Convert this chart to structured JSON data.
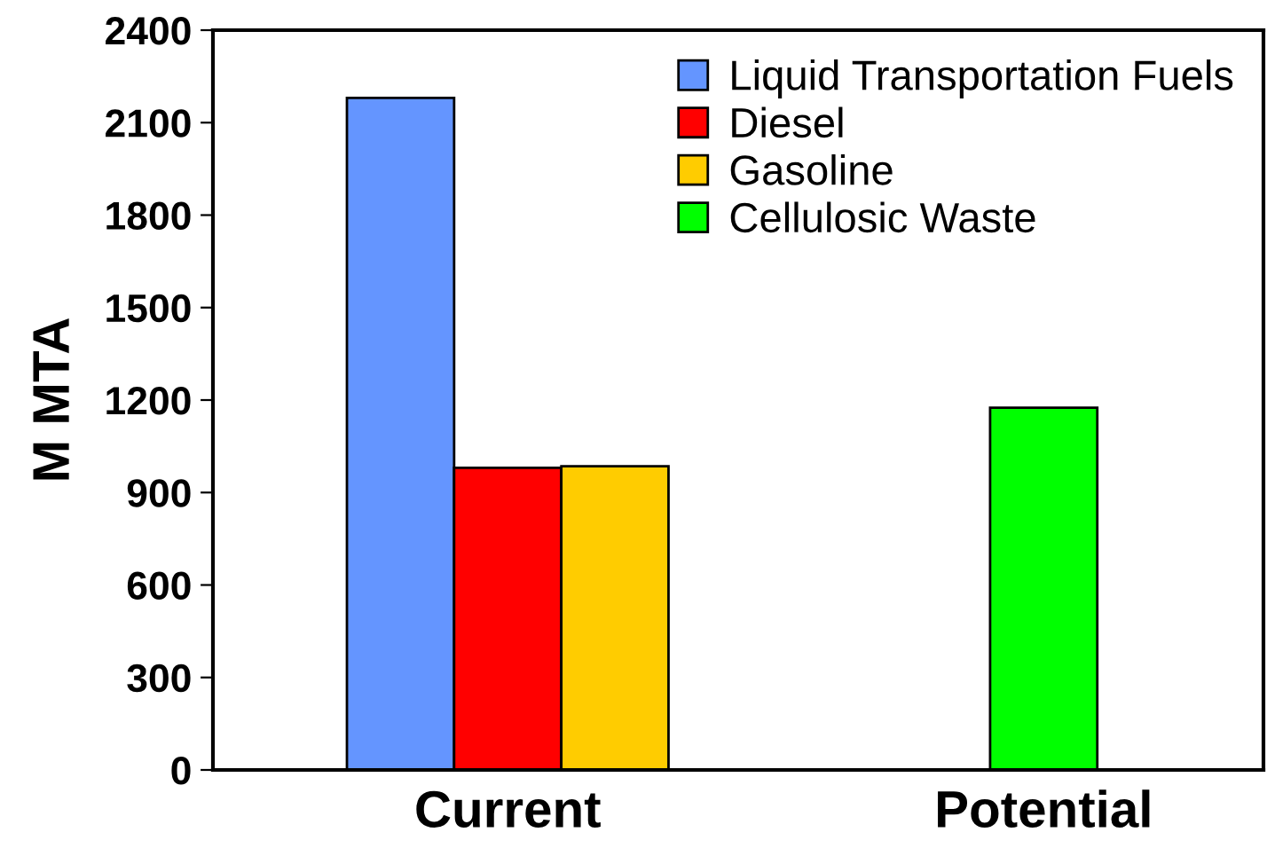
{
  "chart_data": {
    "type": "bar",
    "ylabel": "M MTA",
    "categories": [
      "Current",
      "Potential"
    ],
    "series": [
      {
        "name": "Liquid Transportation Fuels",
        "color": "#6495ff",
        "values": [
          2180,
          null
        ]
      },
      {
        "name": "Diesel",
        "color": "#ff0000",
        "values": [
          980,
          null
        ]
      },
      {
        "name": "Gasoline",
        "color": "#ffcc00",
        "values": [
          985,
          null
        ]
      },
      {
        "name": "Cellulosic Waste",
        "color": "#00ff00",
        "values": [
          null,
          1175
        ]
      }
    ],
    "ylim": [
      0,
      2400
    ],
    "yticks": [
      0,
      300,
      600,
      900,
      1200,
      1500,
      1800,
      2100,
      2400
    ],
    "grid": false,
    "legend": "top right"
  }
}
